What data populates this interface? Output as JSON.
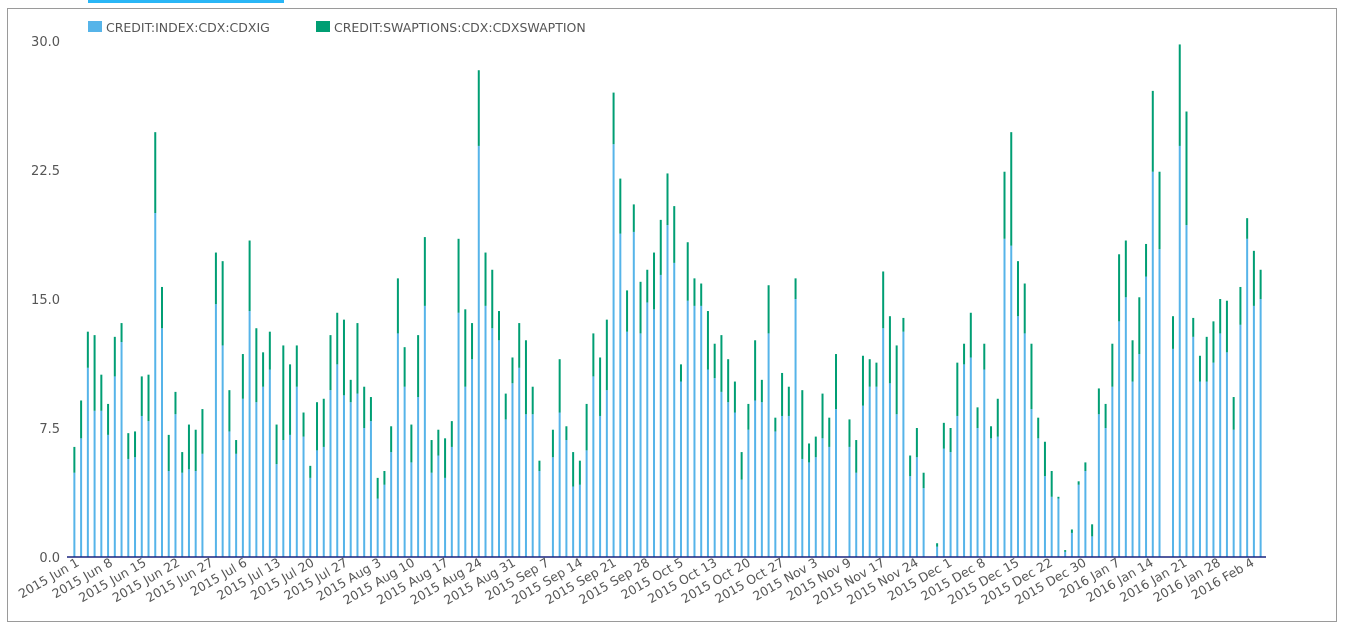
{
  "chart_data": {
    "type": "bar",
    "stacked": true,
    "series": [
      {
        "name": "CREDIT:INDEX:CDX:CDXIG",
        "color": "#56b4e9",
        "values": [
          4.9,
          6.9,
          11.0,
          8.5,
          8.5,
          7.1,
          10.5,
          12.5,
          5.7,
          5.8,
          8.2,
          7.9,
          20.0,
          13.3,
          5.0,
          8.3,
          4.9,
          5.1,
          5.0,
          6.0,
          0,
          14.7,
          12.3,
          7.3,
          6.0,
          9.2,
          14.3,
          9.0,
          9.9,
          10.9,
          5.4,
          6.8,
          7.1,
          9.9,
          7.0,
          4.6,
          6.2,
          6.4,
          9.7,
          11.2,
          9.4,
          9.0,
          9.5,
          7.5,
          7.9,
          3.4,
          4.2,
          6.1,
          13.0,
          9.9,
          5.5,
          9.3,
          14.6,
          4.9,
          5.9,
          4.6,
          6.4,
          14.2,
          9.9,
          11.5,
          23.9,
          14.6,
          13.3,
          12.6,
          8.0,
          10.1,
          11.0,
          8.3,
          8.3,
          5.0,
          0,
          5.8,
          8.4,
          6.8,
          4.1,
          4.2,
          6.2,
          10.5,
          8.2,
          9.7,
          24.0,
          18.8,
          13.1,
          18.9,
          13.0,
          14.8,
          14.4,
          16.4,
          19.3,
          17.1,
          10.2,
          14.9,
          14.6,
          14.6,
          10.9,
          10.4,
          9.6,
          9.0,
          8.4,
          4.5,
          7.4,
          9.1,
          9.0,
          13.0,
          7.3,
          8.2,
          8.2,
          15.0,
          5.7,
          5.5,
          5.8,
          6.9,
          6.4,
          8.6,
          0,
          6.4,
          4.9,
          8.8,
          9.9,
          9.9,
          13.3,
          10.1,
          8.3,
          13.1,
          4.7,
          5.8,
          4.0,
          0,
          0.6,
          6.3,
          6.1,
          8.2,
          11.2,
          11.6,
          7.5,
          10.9,
          6.9,
          7.0,
          18.5,
          18.1,
          14.0,
          13.0,
          8.6,
          6.9,
          4.7,
          3.5,
          3.4,
          0.3,
          1.4,
          4.2,
          5.0,
          1.2,
          8.3,
          7.5,
          9.9,
          13.7,
          15.1,
          10.2,
          11.8,
          16.3,
          22.4,
          17.9,
          0,
          12.1,
          23.9,
          19.3,
          12.8,
          10.2,
          10.2,
          11.3,
          13.0,
          11.9,
          7.4,
          13.5,
          18.5,
          14.6,
          15.0
        ],
        "tops": [
          6.4,
          9.1,
          13.1,
          12.9,
          10.6,
          8.9,
          12.8,
          13.6,
          7.2,
          7.3,
          10.5,
          10.6,
          24.7,
          15.7,
          7.1,
          9.6,
          6.1,
          7.7,
          7.4,
          8.6,
          0,
          17.7,
          17.2,
          9.7,
          6.8,
          11.8,
          18.4,
          13.3,
          11.9,
          13.1,
          7.7,
          12.3,
          11.2,
          12.3,
          8.4,
          5.3,
          9.0,
          9.2,
          12.9,
          14.2,
          13.8,
          10.3,
          13.6,
          9.9,
          9.3,
          4.6,
          5.0,
          7.6,
          16.2,
          12.2,
          7.7,
          12.9,
          18.6,
          6.8,
          7.4,
          6.9,
          7.9,
          18.5,
          14.4,
          13.6,
          28.3,
          17.7,
          16.7,
          14.3,
          9.5,
          11.6,
          13.6,
          12.6,
          9.9,
          5.6,
          0,
          7.4,
          11.5,
          7.6,
          6.1,
          5.6,
          8.9,
          13.0,
          11.6,
          13.8,
          27.0,
          22.0,
          15.5,
          20.5,
          16.0,
          16.7,
          17.7,
          19.6,
          22.3,
          20.4,
          11.2,
          18.3,
          16.2,
          15.9,
          14.3,
          12.4,
          12.9,
          11.5,
          10.2,
          6.1,
          8.9,
          12.6,
          10.3,
          15.8,
          8.1,
          10.7,
          9.9,
          16.2,
          9.7,
          6.6,
          7.0,
          9.5,
          8.1,
          11.8,
          0,
          8.0,
          6.8,
          11.7,
          11.5,
          11.3,
          16.6,
          14.0,
          12.3,
          13.9,
          5.9,
          7.5,
          4.9,
          0,
          0.8,
          7.8,
          7.5,
          11.3,
          12.4,
          14.2,
          8.7,
          12.4,
          7.6,
          9.2,
          22.4,
          24.7,
          17.2,
          15.9,
          12.4,
          8.1,
          6.7,
          5.0,
          3.5,
          0.4,
          1.6,
          4.4,
          5.5,
          1.9,
          9.8,
          8.9,
          12.4,
          17.6,
          18.4,
          12.6,
          15.1,
          18.2,
          27.1,
          22.4,
          0,
          14.0,
          29.8,
          25.9,
          13.9,
          11.7,
          12.8,
          13.7,
          15.0,
          14.9,
          9.3,
          15.7,
          19.7,
          17.8,
          16.7
        ]
      },
      {
        "name": "CREDIT:SWAPTIONS:CDX:CDXSWAPTION",
        "color": "#009e73"
      }
    ],
    "xtick_labels": [
      "2015 Jun 1",
      "2015 Jun 8",
      "2015 Jun 15",
      "2015 Jun 22",
      "2015 Jun 27",
      "2015 Jul 6",
      "2015 Jul 13",
      "2015 Jul 20",
      "2015 Jul 27",
      "2015 Aug 3",
      "2015 Aug 10",
      "2015 Aug 17",
      "2015 Aug 24",
      "2015 Aug 31",
      "2015 Sep 7",
      "2015 Sep 14",
      "2015 Sep 21",
      "2015 Sep 28",
      "2015 Oct 5",
      "2015 Oct 13",
      "2015 Oct 20",
      "2015 Oct 27",
      "2015 Nov 3",
      "2015 Nov 9",
      "2015 Nov 17",
      "2015 Nov 24",
      "2015 Dec 1",
      "2015 Dec 8",
      "2015 Dec 15",
      "2015 Dec 22",
      "2015 Dec 30",
      "2016 Jan 7",
      "2016 Jan 14",
      "2016 Jan 21",
      "2016 Jan 28",
      "2016 Feb 4"
    ],
    "ytick_labels": [
      "0.0",
      "7.5",
      "15.0",
      "22.5",
      "30.0"
    ],
    "ylim": [
      0,
      30
    ],
    "grid": false,
    "legend": "top-left"
  }
}
